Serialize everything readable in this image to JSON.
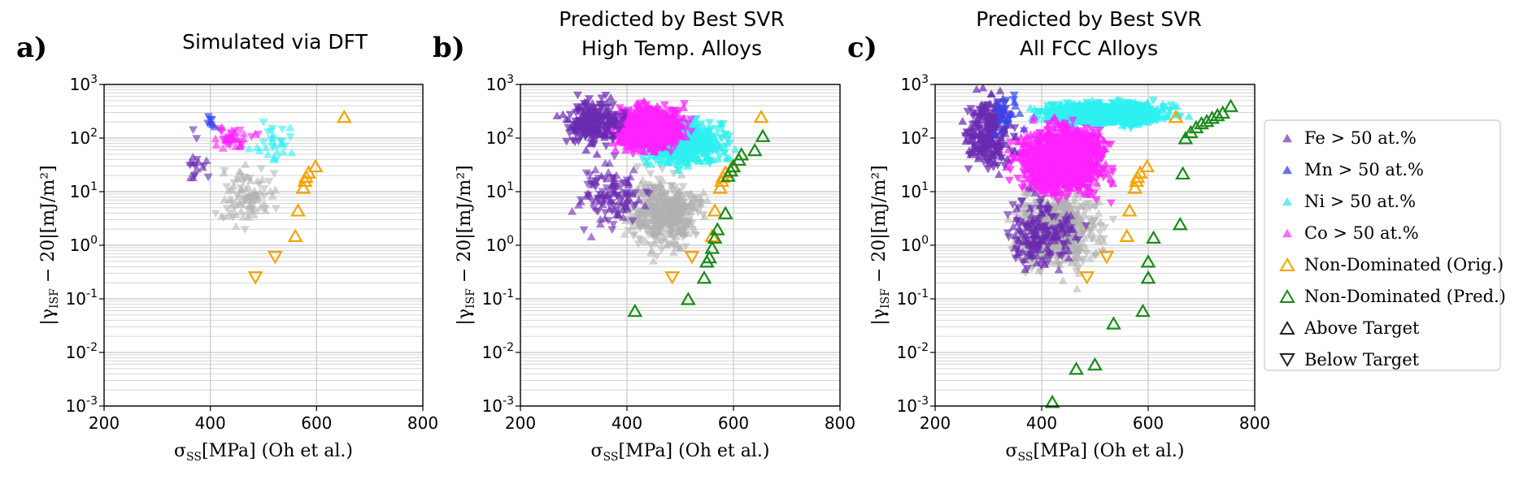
{
  "chart_data": [
    {
      "type": "scatter",
      "panel_letter": "a)",
      "title": "Simulated via DFT",
      "xlabel": "σSS[MPa] (Oh et al.)",
      "ylabel": "|γISF − 20|[mJ/m²]",
      "xlim": [
        200,
        800
      ],
      "ylim_log10": [
        -3,
        3
      ],
      "y_scale": "log",
      "grid": true,
      "x_ticks": [
        "200",
        "400",
        "600",
        "800"
      ],
      "y_ticks": [
        "10^-3",
        "10^-2",
        "10^-1",
        "10^0",
        "10^1",
        "10^2",
        "10^3"
      ],
      "series": [
        {
          "name": "Non-Dominated (Orig.)",
          "points": [
            [
              485,
              0.25
            ],
            [
              522,
              0.6
            ],
            [
              560,
              1.5
            ],
            [
              565,
              4.5
            ],
            [
              575,
              12
            ],
            [
              578,
              16
            ],
            [
              580,
              19
            ],
            [
              585,
              23
            ],
            [
              598,
              30
            ],
            [
              652,
              250
            ]
          ]
        }
      ]
    },
    {
      "type": "scatter",
      "panel_letter": "b)",
      "title": "Predicted by Best SVR\nHigh Temp. Alloys",
      "xlabel": "σSS[MPa] (Oh et al.)",
      "ylabel": "|γISF − 20|[mJ/m²]",
      "xlim": [
        200,
        800
      ],
      "ylim_log10": [
        -3,
        3
      ],
      "y_scale": "log",
      "grid": true,
      "x_ticks": [
        "200",
        "400",
        "600",
        "800"
      ],
      "y_ticks": [
        "10^-3",
        "10^-2",
        "10^-1",
        "10^0",
        "10^1",
        "10^2",
        "10^3"
      ],
      "series": [
        {
          "name": "Non-Dominated (Orig.)",
          "points": [
            [
              485,
              0.25
            ],
            [
              522,
              0.6
            ],
            [
              560,
              1.5
            ],
            [
              565,
              4.5
            ],
            [
              575,
              12
            ],
            [
              578,
              16
            ],
            [
              580,
              19
            ],
            [
              585,
              23
            ],
            [
              598,
              30
            ],
            [
              652,
              250
            ]
          ]
        },
        {
          "name": "Non-Dominated (Pred.)",
          "points": [
            [
              415,
              0.06
            ],
            [
              515,
              0.1
            ],
            [
              545,
              0.25
            ],
            [
              550,
              0.5
            ],
            [
              555,
              0.6
            ],
            [
              560,
              0.9
            ],
            [
              565,
              1.4
            ],
            [
              570,
              2
            ],
            [
              585,
              4
            ],
            [
              590,
              20
            ],
            [
              595,
              25
            ],
            [
              600,
              30
            ],
            [
              610,
              40
            ],
            [
              615,
              50
            ],
            [
              640,
              60
            ],
            [
              655,
              110
            ]
          ]
        }
      ]
    },
    {
      "type": "scatter",
      "panel_letter": "c)",
      "title": "Predicted by Best SVR\nAll FCC Alloys",
      "xlabel": "σSS[MPa] (Oh et al.)",
      "ylabel": "|γISF − 20|[mJ/m²]",
      "xlim": [
        200,
        800
      ],
      "ylim_log10": [
        -3,
        3
      ],
      "y_scale": "log",
      "grid": true,
      "x_ticks": [
        "200",
        "400",
        "600",
        "800"
      ],
      "y_ticks": [
        "10^-3",
        "10^-2",
        "10^-1",
        "10^0",
        "10^1",
        "10^2",
        "10^3"
      ],
      "series": [
        {
          "name": "Non-Dominated (Orig.)",
          "points": [
            [
              485,
              0.25
            ],
            [
              522,
              0.6
            ],
            [
              560,
              1.5
            ],
            [
              565,
              4.5
            ],
            [
              575,
              12
            ],
            [
              578,
              16
            ],
            [
              580,
              19
            ],
            [
              585,
              23
            ],
            [
              598,
              30
            ],
            [
              652,
              250
            ]
          ]
        },
        {
          "name": "Non-Dominated (Pred.)",
          "points": [
            [
              420,
              0.0012
            ],
            [
              465,
              0.005
            ],
            [
              500,
              0.006
            ],
            [
              535,
              0.035
            ],
            [
              590,
              0.06
            ],
            [
              600,
              0.25
            ],
            [
              600,
              0.5
            ],
            [
              610,
              1.4
            ],
            [
              660,
              2.5
            ],
            [
              665,
              22
            ],
            [
              670,
              100
            ],
            [
              680,
              130
            ],
            [
              690,
              160
            ],
            [
              700,
              190
            ],
            [
              710,
              210
            ],
            [
              720,
              240
            ],
            [
              730,
              270
            ],
            [
              740,
              300
            ],
            [
              755,
              400
            ]
          ]
        }
      ]
    }
  ],
  "legend": {
    "placement": "right",
    "entries": [
      {
        "label": "Fe  > 50 at.%",
        "marker": "filled-triangle",
        "color": "#7b3fb5"
      },
      {
        "label": "Mn  > 50 at.%",
        "marker": "filled-triangle",
        "color": "#3b3bf0"
      },
      {
        "label": "Ni  > 50 at.%",
        "marker": "filled-triangle",
        "color": "#2ee8f0"
      },
      {
        "label": "Co  > 50 at.%",
        "marker": "filled-triangle",
        "color": "#f23cf2"
      },
      {
        "label": "Non-Dominated (Orig.)",
        "marker": "hollow-triangle",
        "color": "#f5a300"
      },
      {
        "label": "Non-Dominated (Pred.)",
        "marker": "hollow-triangle",
        "color": "#1a8a1a"
      },
      {
        "label": "Above Target",
        "marker": "hollow-triangle",
        "color": "#222222"
      },
      {
        "label": "Below Target",
        "marker": "hollow-triangle-down",
        "color": "#222222"
      }
    ]
  },
  "colors": {
    "fe": "#6a2ab0",
    "mn": "#3344ee",
    "ni": "#2ef0f0",
    "co": "#ff22ff",
    "other": "#b0b0b0",
    "orig": "#f5a300",
    "pred": "#1a8a1a",
    "grid": "#c8c8c8"
  }
}
